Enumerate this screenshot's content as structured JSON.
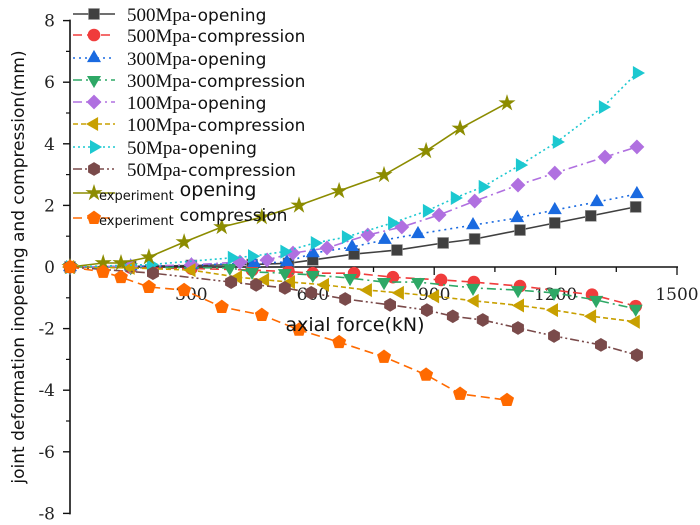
{
  "chart_data": {
    "type": "line",
    "xlabel": "axial force(kN)",
    "ylabel": "joint deformation inopening and compression(mm)",
    "xlim": [
      0,
      1500
    ],
    "ylim": [
      -8,
      8
    ],
    "xticks": [
      "300",
      "600",
      "900",
      "1200",
      "1500"
    ],
    "xtick_values": [
      300,
      600,
      900,
      1200,
      1500
    ],
    "yticks": [
      "8",
      "6",
      "4",
      "2",
      "0",
      "-2",
      "-4",
      "-6",
      "-8"
    ],
    "ytick_values": [
      8,
      6,
      4,
      2,
      0,
      -2,
      -4,
      -6,
      -8
    ],
    "grid": false,
    "legend_placement": "top-left",
    "series": [
      {
        "name": "500Mpa- opening",
        "prefix": "500Mpa-",
        "suffix": "opening",
        "color": "#404040",
        "marker": "square",
        "dash": "solid",
        "x": [
          0,
          150,
          300,
          450,
          540,
          600,
          702,
          808,
          922,
          1000,
          1112,
          1198,
          1287,
          1398
        ],
        "y": [
          0,
          0.02,
          0.05,
          0.08,
          0.12,
          0.23,
          0.42,
          0.55,
          0.78,
          0.91,
          1.2,
          1.43,
          1.66,
          1.95
        ]
      },
      {
        "name": "500Mpa- compression",
        "prefix": "500Mpa-",
        "suffix": "compression",
        "color": "#f03c3c",
        "marker": "circle",
        "dash": "9,5",
        "x": [
          0,
          150,
          300,
          450,
          540,
          600,
          702,
          798,
          917,
          998,
          1112,
          1290,
          1398
        ],
        "y": [
          0,
          -0.02,
          -0.05,
          -0.1,
          -0.15,
          -0.2,
          -0.2,
          -0.33,
          -0.42,
          -0.49,
          -0.62,
          -0.9,
          -1.27
        ]
      },
      {
        "name": "300Mpa- opening",
        "prefix": "300Mpa-",
        "suffix": "opening",
        "color": "#1a6ae0",
        "marker": "triangle-up",
        "dash": "2,4",
        "x": [
          0,
          150,
          300,
          455,
          536,
          600,
          697,
          778,
          860,
          996,
          1105,
          1198,
          1302,
          1401
        ],
        "y": [
          0,
          0.02,
          0.06,
          0.13,
          0.16,
          0.45,
          0.65,
          0.88,
          1.07,
          1.36,
          1.59,
          1.85,
          2.11,
          2.37
        ]
      },
      {
        "name": "300Mpa- compression",
        "prefix": "300Mpa-",
        "suffix": "compression",
        "color": "#2ea866",
        "marker": "triangle-down",
        "dash": "9,4,2,4",
        "x": [
          0,
          150,
          395,
          450,
          531,
          600,
          692,
          776,
          860,
          996,
          1107,
          1196,
          1300,
          1398
        ],
        "y": [
          0,
          -0.01,
          -0.03,
          -0.16,
          -0.2,
          -0.26,
          -0.36,
          -0.49,
          -0.49,
          -0.68,
          -0.75,
          -0.84,
          -1.07,
          -1.36
        ]
      },
      {
        "name": "100Mpa- opening",
        "prefix": "100Mpa-",
        "suffix": "opening",
        "color": "#b070e0",
        "marker": "diamond",
        "dash": "9,4,2,4",
        "x": [
          0,
          150,
          300,
          420,
          487,
          551,
          635,
          736,
          820,
          912,
          1000,
          1107,
          1198,
          1322,
          1401
        ],
        "y": [
          0,
          0.02,
          0.07,
          0.16,
          0.23,
          0.45,
          0.62,
          1.04,
          1.3,
          1.69,
          2.14,
          2.66,
          3.05,
          3.57,
          3.9
        ]
      },
      {
        "name": "100Mpa- compression",
        "prefix": "100Mpa-",
        "suffix": "compression",
        "color": "#c8a000",
        "marker": "triangle-left",
        "dash": "5,3",
        "x": [
          0,
          150,
          300,
          415,
          482,
          546,
          630,
          736,
          815,
          902,
          1000,
          1112,
          1196,
          1290,
          1398
        ],
        "y": [
          0,
          -0.03,
          -0.1,
          -0.33,
          -0.42,
          -0.49,
          -0.58,
          -0.75,
          -0.84,
          -0.95,
          -1.1,
          -1.25,
          -1.4,
          -1.6,
          -1.78
        ]
      },
      {
        "name": "50Mpa- opening",
        "prefix": "50Mpa-",
        "suffix": "opening",
        "color": "#1cc8d0",
        "marker": "triangle-right",
        "dash": "2,3",
        "x": [
          0,
          200,
          400,
          450,
          530,
          605,
          682,
          796,
          882,
          951,
          1020,
          1112,
          1203,
          1317,
          1401
        ],
        "y": [
          0,
          0.08,
          0.3,
          0.35,
          0.5,
          0.78,
          0.97,
          1.43,
          1.82,
          2.24,
          2.6,
          3.31,
          4.06,
          5.19,
          6.3
        ]
      },
      {
        "name": "50Mpa- compression",
        "prefix": "50Mpa-",
        "suffix": "compression",
        "color": "#7a4a4a",
        "marker": "hexagon",
        "dash": "9,3,2,3,2,3",
        "x": [
          0,
          205,
          398,
          460,
          531,
          596,
          680,
          791,
          882,
          946,
          1020,
          1107,
          1196,
          1312,
          1401
        ],
        "y": [
          0,
          -0.2,
          -0.49,
          -0.58,
          -0.68,
          -0.84,
          -1.04,
          -1.23,
          -1.4,
          -1.6,
          -1.72,
          -1.98,
          -2.24,
          -2.53,
          -2.86
        ]
      },
      {
        "name": "experiment opening",
        "prefix": "experiment",
        "suffix": "opening",
        "color": "#8c8c00",
        "marker": "star",
        "dash": "solid",
        "x": [
          0,
          82,
          126,
          195,
          282,
          375,
          474,
          566,
          665,
          776,
          880,
          964,
          1080
        ],
        "y": [
          0,
          0.13,
          0.13,
          0.32,
          0.81,
          1.3,
          1.62,
          2.0,
          2.47,
          2.99,
          3.77,
          4.5,
          5.32
        ]
      },
      {
        "name": "experiment compression",
        "prefix": "experiment",
        "suffix": "compression",
        "color": "#ff6a00",
        "marker": "pentagon",
        "dash": "9,5",
        "x": [
          0,
          82,
          126,
          195,
          282,
          375,
          474,
          566,
          665,
          776,
          880,
          964,
          1080
        ],
        "y": [
          0,
          -0.16,
          -0.33,
          -0.65,
          -0.75,
          -1.3,
          -1.56,
          -2.04,
          -2.44,
          -2.92,
          -3.5,
          -4.12,
          -4.32
        ]
      }
    ]
  }
}
